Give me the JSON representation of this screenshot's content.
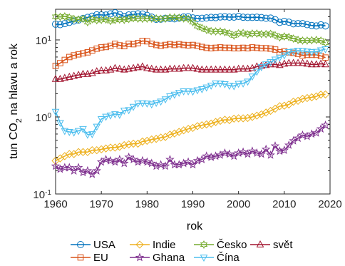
{
  "chart_data": {
    "type": "line",
    "title": "",
    "xlabel": "rok",
    "ylabel_parts": {
      "main": "tun CO",
      "sub": "2",
      "tail": " na hlavu a rok"
    },
    "yscale": "log",
    "xlim": [
      1960,
      2020
    ],
    "ylim": [
      0.1,
      25
    ],
    "grid": false,
    "legend_position": "below",
    "x_ticks": [
      1960,
      1970,
      1980,
      1990,
      2000,
      2010,
      2020
    ],
    "x_tick_labels": [
      "1960",
      "1970",
      "1980",
      "1990",
      "2000",
      "2010",
      "2020"
    ],
    "y_ticks": [
      0.1,
      1,
      10
    ],
    "y_tick_labels": [
      {
        "base": "10",
        "exp": "-1"
      },
      {
        "base": "10",
        "exp": "0"
      },
      {
        "base": "10",
        "exp": "1"
      }
    ],
    "series": [
      {
        "name": "USA",
        "color": "#0072BD",
        "marker": "circle",
        "x": [
          1960,
          1961,
          1962,
          1963,
          1964,
          1965,
          1966,
          1967,
          1968,
          1969,
          1970,
          1971,
          1972,
          1973,
          1974,
          1975,
          1976,
          1977,
          1978,
          1979,
          1980,
          1981,
          1982,
          1983,
          1984,
          1985,
          1986,
          1987,
          1988,
          1989,
          1990,
          1991,
          1992,
          1993,
          1994,
          1995,
          1996,
          1997,
          1998,
          1999,
          2000,
          2001,
          2002,
          2003,
          2004,
          2005,
          2006,
          2007,
          2008,
          2009,
          2010,
          2011,
          2012,
          2013,
          2014,
          2015,
          2016,
          2017,
          2018,
          2019
        ],
        "y": [
          16.0,
          15.8,
          16.3,
          16.9,
          17.6,
          18.1,
          19.0,
          19.6,
          20.3,
          21.2,
          21.1,
          21.0,
          21.8,
          22.5,
          21.4,
          20.2,
          21.1,
          21.4,
          21.8,
          21.7,
          20.8,
          19.8,
          18.5,
          18.6,
          19.1,
          19.0,
          18.8,
          19.2,
          19.9,
          20.0,
          19.3,
          19.0,
          19.1,
          19.3,
          19.6,
          19.5,
          19.9,
          20.0,
          19.8,
          19.8,
          20.2,
          19.7,
          19.6,
          19.6,
          19.7,
          19.5,
          19.1,
          19.2,
          18.3,
          16.9,
          17.4,
          17.0,
          16.2,
          16.3,
          16.3,
          15.8,
          15.4,
          15.2,
          15.7,
          15.2
        ]
      },
      {
        "name": "EU",
        "color": "#D95319",
        "marker": "square",
        "x": [
          1960,
          1961,
          1962,
          1963,
          1964,
          1965,
          1966,
          1967,
          1968,
          1969,
          1970,
          1971,
          1972,
          1973,
          1974,
          1975,
          1976,
          1977,
          1978,
          1979,
          1980,
          1981,
          1982,
          1983,
          1984,
          1985,
          1986,
          1987,
          1988,
          1989,
          1990,
          1991,
          1992,
          1993,
          1994,
          1995,
          1996,
          1997,
          1998,
          1999,
          2000,
          2001,
          2002,
          2003,
          2004,
          2005,
          2006,
          2007,
          2008,
          2009,
          2010,
          2011,
          2012,
          2013,
          2014,
          2015,
          2016,
          2017,
          2018,
          2019
        ],
        "y": [
          4.6,
          5.0,
          5.5,
          6.0,
          6.3,
          6.5,
          6.7,
          6.9,
          7.3,
          7.7,
          8.0,
          8.1,
          8.4,
          8.9,
          8.5,
          8.3,
          8.9,
          8.8,
          9.1,
          9.7,
          9.6,
          8.9,
          8.6,
          8.4,
          8.6,
          8.8,
          8.6,
          8.8,
          8.6,
          8.5,
          8.6,
          8.4,
          8.1,
          7.9,
          7.8,
          7.9,
          8.0,
          7.9,
          7.9,
          7.8,
          7.8,
          7.9,
          7.8,
          8.0,
          7.9,
          7.8,
          7.8,
          7.7,
          7.5,
          6.9,
          7.1,
          6.9,
          6.8,
          6.6,
          6.3,
          6.4,
          6.4,
          6.4,
          6.2,
          5.9
        ]
      },
      {
        "name": "Indie",
        "color": "#EDB120",
        "marker": "diamond",
        "x": [
          1960,
          1961,
          1962,
          1963,
          1964,
          1965,
          1966,
          1967,
          1968,
          1969,
          1970,
          1971,
          1972,
          1973,
          1974,
          1975,
          1976,
          1977,
          1978,
          1979,
          1980,
          1981,
          1982,
          1983,
          1984,
          1985,
          1986,
          1987,
          1988,
          1989,
          1990,
          1991,
          1992,
          1993,
          1994,
          1995,
          1996,
          1997,
          1998,
          1999,
          2000,
          2001,
          2002,
          2003,
          2004,
          2005,
          2006,
          2007,
          2008,
          2009,
          2010,
          2011,
          2012,
          2013,
          2014,
          2015,
          2016,
          2017,
          2018,
          2019
        ],
        "y": [
          0.27,
          0.29,
          0.31,
          0.33,
          0.33,
          0.35,
          0.35,
          0.35,
          0.37,
          0.37,
          0.38,
          0.39,
          0.4,
          0.4,
          0.41,
          0.43,
          0.44,
          0.45,
          0.45,
          0.48,
          0.49,
          0.51,
          0.52,
          0.54,
          0.55,
          0.59,
          0.61,
          0.64,
          0.67,
          0.7,
          0.72,
          0.76,
          0.78,
          0.8,
          0.82,
          0.86,
          0.89,
          0.92,
          0.91,
          0.95,
          0.96,
          0.96,
          0.97,
          1.0,
          1.04,
          1.08,
          1.14,
          1.2,
          1.28,
          1.38,
          1.4,
          1.45,
          1.58,
          1.62,
          1.72,
          1.76,
          1.8,
          1.85,
          1.95,
          1.96
        ]
      },
      {
        "name": "Ghana",
        "color": "#7E2F8E",
        "marker": "star",
        "x": [
          1960,
          1961,
          1962,
          1963,
          1964,
          1965,
          1966,
          1967,
          1968,
          1969,
          1970,
          1971,
          1972,
          1973,
          1974,
          1975,
          1976,
          1977,
          1978,
          1979,
          1980,
          1981,
          1982,
          1983,
          1984,
          1985,
          1986,
          1987,
          1988,
          1989,
          1990,
          1991,
          1992,
          1993,
          1994,
          1995,
          1996,
          1997,
          1998,
          1999,
          2000,
          2001,
          2002,
          2003,
          2004,
          2005,
          2006,
          2007,
          2008,
          2009,
          2010,
          2011,
          2012,
          2013,
          2014,
          2015,
          2016,
          2017,
          2018,
          2019
        ],
        "y": [
          0.23,
          0.21,
          0.22,
          0.22,
          0.2,
          0.22,
          0.19,
          0.2,
          0.18,
          0.2,
          0.26,
          0.28,
          0.27,
          0.26,
          0.28,
          0.25,
          0.3,
          0.28,
          0.26,
          0.27,
          0.26,
          0.25,
          0.23,
          0.24,
          0.23,
          0.28,
          0.24,
          0.24,
          0.25,
          0.26,
          0.24,
          0.27,
          0.28,
          0.31,
          0.3,
          0.31,
          0.32,
          0.34,
          0.33,
          0.31,
          0.34,
          0.35,
          0.33,
          0.36,
          0.34,
          0.33,
          0.38,
          0.32,
          0.42,
          0.36,
          0.37,
          0.43,
          0.49,
          0.53,
          0.58,
          0.56,
          0.6,
          0.62,
          0.7,
          0.78
        ]
      },
      {
        "name": "Česko",
        "color": "#77AC30",
        "marker": "hexagram",
        "x": [
          1960,
          1961,
          1962,
          1963,
          1964,
          1965,
          1966,
          1967,
          1968,
          1969,
          1970,
          1971,
          1972,
          1973,
          1974,
          1975,
          1976,
          1977,
          1978,
          1979,
          1980,
          1981,
          1982,
          1983,
          1984,
          1985,
          1986,
          1987,
          1988,
          1989,
          1990,
          1991,
          1992,
          1993,
          1994,
          1995,
          1996,
          1997,
          1998,
          1999,
          2000,
          2001,
          2002,
          2003,
          2004,
          2005,
          2006,
          2007,
          2008,
          2009,
          2010,
          2011,
          2012,
          2013,
          2014,
          2015,
          2016,
          2017,
          2018,
          2019
        ],
        "y": [
          20.0,
          19.9,
          20.2,
          19.5,
          18.7,
          18.4,
          18.8,
          17.0,
          18.6,
          18.0,
          18.2,
          18.4,
          17.6,
          18.1,
          18.4,
          18.2,
          18.7,
          19.2,
          18.9,
          18.8,
          18.9,
          18.9,
          19.0,
          18.8,
          18.9,
          19.6,
          19.6,
          19.4,
          19.0,
          18.8,
          17.0,
          15.1,
          14.3,
          13.5,
          13.0,
          12.9,
          12.9,
          12.6,
          12.2,
          11.4,
          12.2,
          12.3,
          11.8,
          12.1,
          12.1,
          11.9,
          11.9,
          12.0,
          11.5,
          10.8,
          11.1,
          10.9,
          10.4,
          10.0,
          9.8,
          9.8,
          9.9,
          10.0,
          9.8,
          9.2
        ]
      },
      {
        "name": "svět",
        "color": "#A2142F",
        "marker": "triangle-up",
        "x": [
          1960,
          1961,
          1962,
          1963,
          1964,
          1965,
          1966,
          1967,
          1968,
          1969,
          1970,
          1971,
          1972,
          1973,
          1974,
          1975,
          1976,
          1977,
          1978,
          1979,
          1980,
          1981,
          1982,
          1983,
          1984,
          1985,
          1986,
          1987,
          1988,
          1989,
          1990,
          1991,
          1992,
          1993,
          1994,
          1995,
          1996,
          1997,
          1998,
          1999,
          2000,
          2001,
          2002,
          2003,
          2004,
          2005,
          2006,
          2007,
          2008,
          2009,
          2010,
          2011,
          2012,
          2013,
          2014,
          2015,
          2016,
          2017,
          2018,
          2019
        ],
        "y": [
          3.1,
          3.1,
          3.2,
          3.3,
          3.4,
          3.5,
          3.6,
          3.6,
          3.7,
          3.9,
          4.0,
          4.0,
          4.1,
          4.3,
          4.2,
          4.1,
          4.2,
          4.3,
          4.4,
          4.5,
          4.3,
          4.2,
          4.1,
          4.1,
          4.1,
          4.2,
          4.2,
          4.2,
          4.3,
          4.3,
          4.3,
          4.2,
          4.1,
          4.1,
          4.1,
          4.1,
          4.1,
          4.1,
          4.1,
          4.1,
          4.2,
          4.2,
          4.2,
          4.3,
          4.5,
          4.6,
          4.7,
          4.8,
          4.8,
          4.7,
          4.9,
          5.0,
          5.0,
          5.0,
          5.0,
          4.9,
          4.8,
          4.8,
          4.9,
          4.8
        ]
      },
      {
        "name": "Čína",
        "color": "#4DBEEE",
        "marker": "triangle-down",
        "x": [
          1960,
          1961,
          1962,
          1963,
          1964,
          1965,
          1966,
          1967,
          1968,
          1969,
          1970,
          1971,
          1972,
          1973,
          1974,
          1975,
          1976,
          1977,
          1978,
          1979,
          1980,
          1981,
          1982,
          1983,
          1984,
          1985,
          1986,
          1987,
          1988,
          1989,
          1990,
          1991,
          1992,
          1993,
          1994,
          1995,
          1996,
          1997,
          1998,
          1999,
          2000,
          2001,
          2002,
          2003,
          2004,
          2005,
          2006,
          2007,
          2008,
          2009,
          2010,
          2011,
          2012,
          2013,
          2014,
          2015,
          2016,
          2017,
          2018,
          2019
        ],
        "y": [
          1.17,
          0.84,
          0.66,
          0.64,
          0.63,
          0.66,
          0.7,
          0.59,
          0.6,
          0.75,
          0.94,
          1.01,
          1.05,
          1.09,
          1.07,
          1.21,
          1.23,
          1.36,
          1.5,
          1.51,
          1.5,
          1.46,
          1.53,
          1.59,
          1.7,
          1.86,
          1.95,
          2.07,
          2.16,
          2.16,
          2.14,
          2.23,
          2.3,
          2.42,
          2.56,
          2.74,
          2.72,
          2.67,
          2.55,
          2.52,
          2.7,
          2.73,
          2.89,
          3.36,
          3.88,
          4.45,
          4.84,
          5.18,
          5.58,
          5.9,
          6.33,
          6.98,
          7.08,
          7.26,
          7.2,
          7.09,
          6.98,
          7.04,
          7.36,
          7.6
        ]
      }
    ],
    "legend_rows": [
      [
        "USA",
        "Indie",
        "Česko",
        "svět"
      ],
      [
        "EU",
        "Ghana",
        "Čína"
      ]
    ]
  }
}
